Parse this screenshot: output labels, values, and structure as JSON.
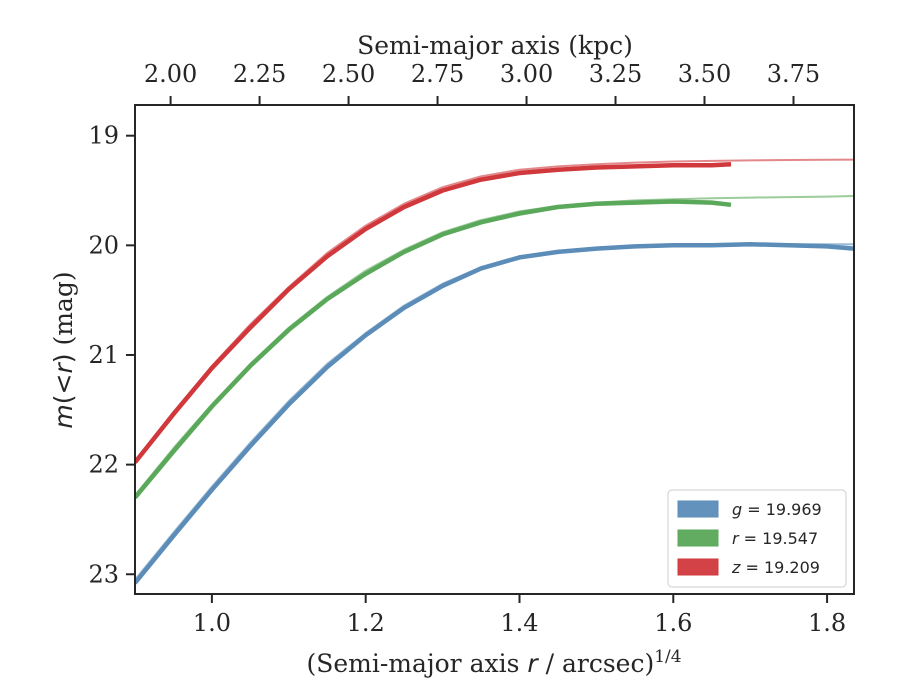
{
  "chart_data": {
    "type": "line",
    "title": "",
    "xlabel_parts": {
      "prefix": "(Semi-major axis ",
      "var": "r",
      "suffix": " / arcsec)",
      "exponent": "1/4"
    },
    "ylabel_parts": {
      "var": "m",
      "open": "(",
      "lt": "<",
      "var2": "r",
      "close": ")",
      "unit": " (mag)"
    },
    "top_xlabel": "Semi-major axis (kpc)",
    "xlim": [
      0.9,
      1.835
    ],
    "ylim": [
      23.18,
      18.72
    ],
    "y_inverted": true,
    "x_ticks": [
      1.0,
      1.2,
      1.4,
      1.6,
      1.8
    ],
    "x_tick_labels": [
      "1.0",
      "1.2",
      "1.4",
      "1.6",
      "1.8"
    ],
    "y_ticks": [
      19,
      20,
      21,
      22,
      23
    ],
    "y_tick_labels": [
      "19",
      "20",
      "21",
      "22",
      "23"
    ],
    "top_ticks": [
      {
        "pos": 0.9375,
        "label": "2.00"
      },
      {
        "pos": 1.1625,
        "label": "2.25"
      },
      {
        "pos": 1.3875,
        "label": "2.50"
      },
      {
        "pos": 1.6125,
        "label": "2.75"
      },
      {
        "pos": 1.8375,
        "label": "3.00"
      },
      {
        "pos": 2.0625,
        "label": "3.25"
      },
      {
        "pos": 2.2875,
        "label": "3.50"
      },
      {
        "pos": 2.5125,
        "label": "3.75"
      }
    ],
    "top_axis_range": [
      1.9,
      3.92
    ],
    "legend_position": "lower-right",
    "series": [
      {
        "name": "g = 19.969",
        "var": "g",
        "value": "19.969",
        "color": "#5b8db8",
        "model_x": [
          0.9,
          0.95,
          1.0,
          1.05,
          1.1,
          1.15,
          1.2,
          1.25,
          1.3,
          1.35,
          1.4,
          1.45,
          1.5,
          1.55,
          1.6,
          1.65,
          1.7,
          1.75,
          1.8,
          1.835
        ],
        "model_y": [
          23.05,
          22.62,
          22.2,
          21.8,
          21.42,
          21.08,
          20.8,
          20.55,
          20.35,
          20.2,
          20.11,
          20.06,
          20.03,
          20.01,
          20.0,
          19.99,
          19.99,
          19.99,
          19.99,
          19.99
        ],
        "data_x": [
          0.9,
          0.95,
          1.0,
          1.05,
          1.1,
          1.15,
          1.2,
          1.25,
          1.3,
          1.35,
          1.4,
          1.45,
          1.5,
          1.55,
          1.6,
          1.65,
          1.7,
          1.75,
          1.8,
          1.835
        ],
        "data_y": [
          23.08,
          22.65,
          22.23,
          21.83,
          21.45,
          21.11,
          20.82,
          20.57,
          20.37,
          20.21,
          20.11,
          20.06,
          20.03,
          20.01,
          20.0,
          20.0,
          19.99,
          20.0,
          20.01,
          20.03
        ]
      },
      {
        "name": "r = 19.547",
        "var": "r",
        "value": "19.547",
        "color": "#5aa85a",
        "model_x": [
          0.9,
          0.95,
          1.0,
          1.05,
          1.1,
          1.15,
          1.2,
          1.25,
          1.3,
          1.35,
          1.4,
          1.45,
          1.5,
          1.55,
          1.6,
          1.65,
          1.7,
          1.75,
          1.8,
          1.835
        ],
        "model_y": [
          22.28,
          21.85,
          21.45,
          21.08,
          20.75,
          20.47,
          20.23,
          20.04,
          19.88,
          19.77,
          19.69,
          19.64,
          19.61,
          19.59,
          19.58,
          19.57,
          19.565,
          19.56,
          19.555,
          19.55
        ],
        "data_x": [
          0.9,
          0.95,
          1.0,
          1.05,
          1.1,
          1.15,
          1.2,
          1.25,
          1.3,
          1.35,
          1.4,
          1.45,
          1.5,
          1.55,
          1.6,
          1.65,
          1.675
        ],
        "data_y": [
          22.3,
          21.88,
          21.47,
          21.1,
          20.77,
          20.49,
          20.26,
          20.06,
          19.9,
          19.79,
          19.71,
          19.65,
          19.62,
          19.61,
          19.6,
          19.61,
          19.63
        ]
      },
      {
        "name": "z = 19.209",
        "var": "z",
        "value": "19.209",
        "color": "#d0383c",
        "model_x": [
          0.9,
          0.95,
          1.0,
          1.05,
          1.1,
          1.15,
          1.2,
          1.25,
          1.3,
          1.35,
          1.4,
          1.45,
          1.5,
          1.55,
          1.6,
          1.65,
          1.7,
          1.75,
          1.8,
          1.835
        ],
        "model_y": [
          21.97,
          21.52,
          21.1,
          20.72,
          20.38,
          20.07,
          19.82,
          19.62,
          19.47,
          19.37,
          19.31,
          19.28,
          19.26,
          19.245,
          19.235,
          19.23,
          19.225,
          19.222,
          19.22,
          19.218
        ],
        "data_x": [
          0.9,
          0.95,
          1.0,
          1.05,
          1.1,
          1.15,
          1.2,
          1.25,
          1.3,
          1.35,
          1.4,
          1.45,
          1.5,
          1.55,
          1.6,
          1.65,
          1.675
        ],
        "data_y": [
          21.98,
          21.54,
          21.12,
          20.75,
          20.4,
          20.1,
          19.85,
          19.65,
          19.5,
          19.4,
          19.34,
          19.31,
          19.29,
          19.28,
          19.27,
          19.27,
          19.26
        ]
      }
    ]
  }
}
